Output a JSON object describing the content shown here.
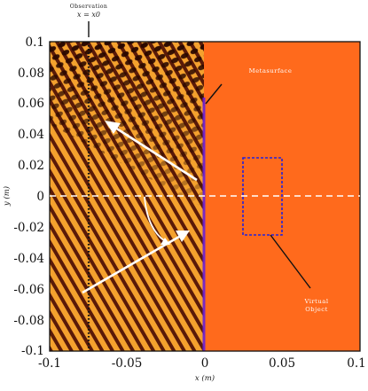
{
  "observation": {
    "title": "Observation",
    "equation": "x = x0"
  },
  "labels": {
    "metasurface": "Metasurface",
    "virtual_object_line1": "Virtual",
    "virtual_object_line2": "Object"
  },
  "axes": {
    "xlabel": "x (m)",
    "ylabel": "y (m)",
    "x_ticks": [
      "-0.1",
      "-0.05",
      "0",
      "0.05",
      "0.1"
    ],
    "y_ticks": [
      "0.1",
      "0.08",
      "0.06",
      "0.04",
      "0.02",
      "0",
      "-0.02",
      "-0.04",
      "-0.06",
      "-0.08",
      "-0.1"
    ],
    "xlim": [
      -0.1,
      0.1
    ],
    "ylim": [
      -0.1,
      0.1
    ]
  },
  "regions": {
    "left_field": "interference pattern",
    "right_field": "uniform"
  },
  "colors": {
    "right_field": "#ff6a1c",
    "stripe_dark": "#5a1a08",
    "stripe_light": "#f7a630",
    "metasurface": "#6a1fd6",
    "virtual_object_box": "#2222dd"
  }
}
